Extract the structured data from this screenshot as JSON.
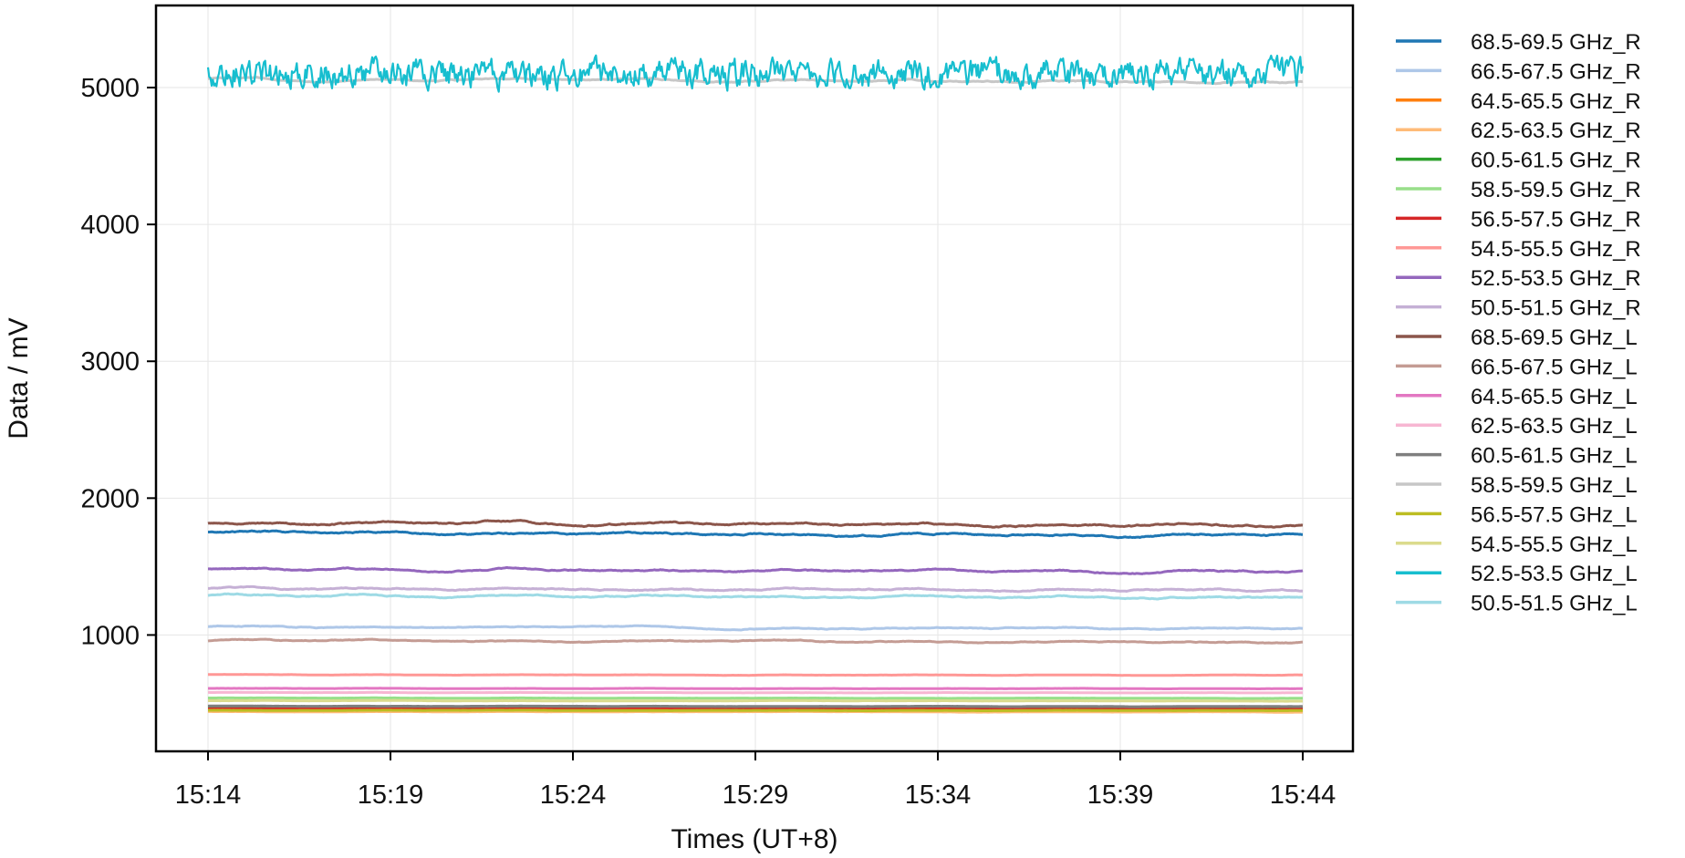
{
  "chart_data": {
    "type": "line",
    "xlabel": "Times (UT+8)",
    "ylabel": "Data / mV",
    "x_ticks": [
      "15:14",
      "15:19",
      "15:24",
      "15:29",
      "15:34",
      "15:39",
      "15:44"
    ],
    "x_range": [
      "15:14",
      "15:44"
    ],
    "ylim": [
      150,
      5600
    ],
    "y_ticks": [
      1000,
      2000,
      3000,
      4000,
      5000
    ],
    "grid": true,
    "legend_position": "outside-right",
    "series": [
      {
        "name": "68.5-69.5 GHz_R",
        "color": "#1f77b4",
        "level": 1750,
        "variation": 18
      },
      {
        "name": "66.5-67.5 GHz_R",
        "color": "#aec7e8",
        "level": 1060,
        "variation": 10
      },
      {
        "name": "64.5-65.5 GHz_R",
        "color": "#ff7f0e",
        "level": 450,
        "variation": 2
      },
      {
        "name": "62.5-63.5 GHz_R",
        "color": "#ffbb78",
        "level": 440,
        "variation": 2
      },
      {
        "name": "60.5-61.5 GHz_R",
        "color": "#2ca02c",
        "level": 470,
        "variation": 2
      },
      {
        "name": "58.5-59.5 GHz_R",
        "color": "#98df8a",
        "level": 540,
        "variation": 2
      },
      {
        "name": "56.5-57.5 GHz_R",
        "color": "#d62728",
        "level": 460,
        "variation": 2
      },
      {
        "name": "54.5-55.5 GHz_R",
        "color": "#ff9896",
        "level": 710,
        "variation": 3
      },
      {
        "name": "52.5-53.5 GHz_R",
        "color": "#9467bd",
        "level": 1480,
        "variation": 15
      },
      {
        "name": "50.5-51.5 GHz_R",
        "color": "#c5b0d5",
        "level": 1340,
        "variation": 14
      },
      {
        "name": "68.5-69.5 GHz_L",
        "color": "#8c564b",
        "level": 1820,
        "variation": 18
      },
      {
        "name": "66.5-67.5 GHz_L",
        "color": "#c49c94",
        "level": 960,
        "variation": 10
      },
      {
        "name": "64.5-65.5 GHz_L",
        "color": "#e377c2",
        "level": 610,
        "variation": 2
      },
      {
        "name": "62.5-63.5 GHz_L",
        "color": "#f7b6d2",
        "level": 580,
        "variation": 2
      },
      {
        "name": "60.5-61.5 GHz_L",
        "color": "#7f7f7f",
        "level": 480,
        "variation": 2
      },
      {
        "name": "58.5-59.5 GHz_L",
        "color": "#c7c7c7",
        "level": 5060,
        "variation": 15
      },
      {
        "name": "56.5-57.5 GHz_L",
        "color": "#bcbd22",
        "level": 450,
        "variation": 2
      },
      {
        "name": "54.5-55.5 GHz_L",
        "color": "#dbdb8d",
        "level": 520,
        "variation": 2
      },
      {
        "name": "52.5-53.5 GHz_L",
        "color": "#17becf",
        "level": 5100,
        "variation": 90
      },
      {
        "name": "50.5-51.5 GHz_L",
        "color": "#9edae5",
        "level": 1290,
        "variation": 14
      }
    ]
  }
}
